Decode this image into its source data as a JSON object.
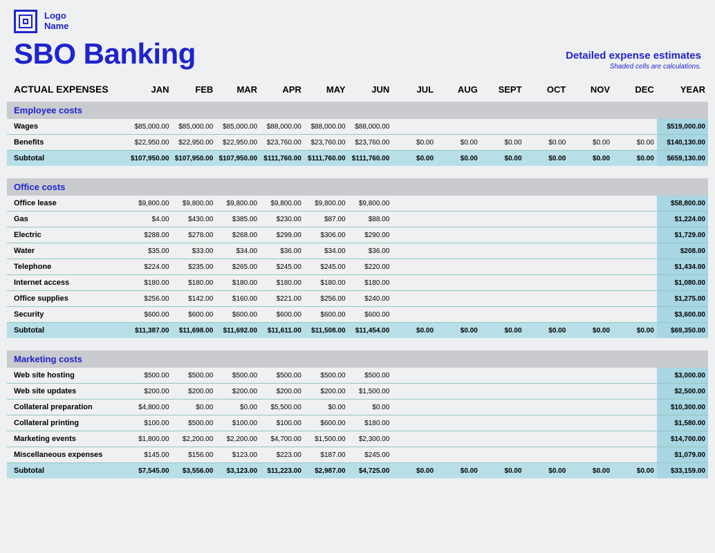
{
  "logo": {
    "line1": "Logo",
    "line2": "Name"
  },
  "title": "SBO Banking",
  "subtitle": "Detailed expense estimates",
  "subnote": "Shaded cells are calculations.",
  "header_label": "ACTUAL EXPENSES",
  "months": [
    "JAN",
    "FEB",
    "MAR",
    "APR",
    "MAY",
    "JUN",
    "JUL",
    "AUG",
    "SEPT",
    "OCT",
    "NOV",
    "DEC"
  ],
  "year_label": "YEAR",
  "colors": {
    "background": "#eff0f1",
    "brand": "#1f24cc",
    "section_header_bg": "#c9cbce",
    "row_border": "#8fc9c0",
    "subtotal_bg": "#b8dfe8",
    "year_col_bg": "#a8d6e2"
  },
  "sections": [
    {
      "title": "Employee costs",
      "rows": [
        {
          "label": "Wages",
          "vals": [
            "$85,000.00",
            "$85,000.00",
            "$85,000.00",
            "$88,000.00",
            "$88,000.00",
            "$88,000.00",
            "",
            "",
            "",
            "",
            "",
            ""
          ],
          "year": "$519,000.00"
        },
        {
          "label": "Benefits",
          "vals": [
            "$22,950.00",
            "$22,950.00",
            "$22,950.00",
            "$23,760.00",
            "$23,760.00",
            "$23,760.00",
            "$0.00",
            "$0.00",
            "$0.00",
            "$0.00",
            "$0.00",
            "$0.00"
          ],
          "year": "$140,130.00"
        }
      ],
      "subtotal": {
        "label": "Subtotal",
        "vals": [
          "$107,950.00",
          "$107,950.00",
          "$107,950.00",
          "$111,760.00",
          "$111,760.00",
          "$111,760.00",
          "$0.00",
          "$0.00",
          "$0.00",
          "$0.00",
          "$0.00",
          "$0.00"
        ],
        "year": "$659,130.00"
      }
    },
    {
      "title": "Office costs",
      "rows": [
        {
          "label": "Office lease",
          "vals": [
            "$9,800.00",
            "$9,800.00",
            "$9,800.00",
            "$9,800.00",
            "$9,800.00",
            "$9,800.00",
            "",
            "",
            "",
            "",
            "",
            ""
          ],
          "year": "$58,800.00"
        },
        {
          "label": "Gas",
          "vals": [
            "$4.00",
            "$430.00",
            "$385.00",
            "$230.00",
            "$87.00",
            "$88.00",
            "",
            "",
            "",
            "",
            "",
            ""
          ],
          "year": "$1,224.00"
        },
        {
          "label": "Electric",
          "vals": [
            "$288.00",
            "$278.00",
            "$268.00",
            "$299.00",
            "$306.00",
            "$290.00",
            "",
            "",
            "",
            "",
            "",
            ""
          ],
          "year": "$1,729.00"
        },
        {
          "label": "Water",
          "vals": [
            "$35.00",
            "$33.00",
            "$34.00",
            "$36.00",
            "$34.00",
            "$36.00",
            "",
            "",
            "",
            "",
            "",
            ""
          ],
          "year": "$208.00"
        },
        {
          "label": "Telephone",
          "vals": [
            "$224.00",
            "$235.00",
            "$265.00",
            "$245.00",
            "$245.00",
            "$220.00",
            "",
            "",
            "",
            "",
            "",
            ""
          ],
          "year": "$1,434.00"
        },
        {
          "label": "Internet access",
          "vals": [
            "$180.00",
            "$180.00",
            "$180.00",
            "$180.00",
            "$180.00",
            "$180.00",
            "",
            "",
            "",
            "",
            "",
            ""
          ],
          "year": "$1,080.00"
        },
        {
          "label": "Office supplies",
          "vals": [
            "$256.00",
            "$142.00",
            "$160.00",
            "$221.00",
            "$256.00",
            "$240.00",
            "",
            "",
            "",
            "",
            "",
            ""
          ],
          "year": "$1,275.00"
        },
        {
          "label": "Security",
          "vals": [
            "$600.00",
            "$600.00",
            "$600.00",
            "$600.00",
            "$600.00",
            "$600.00",
            "",
            "",
            "",
            "",
            "",
            ""
          ],
          "year": "$3,600.00"
        }
      ],
      "subtotal": {
        "label": "Subtotal",
        "vals": [
          "$11,387.00",
          "$11,698.00",
          "$11,692.00",
          "$11,611.00",
          "$11,508.00",
          "$11,454.00",
          "$0.00",
          "$0.00",
          "$0.00",
          "$0.00",
          "$0.00",
          "$0.00"
        ],
        "year": "$69,350.00"
      }
    },
    {
      "title": "Marketing costs",
      "rows": [
        {
          "label": "Web site hosting",
          "vals": [
            "$500.00",
            "$500.00",
            "$500.00",
            "$500.00",
            "$500.00",
            "$500.00",
            "",
            "",
            "",
            "",
            "",
            ""
          ],
          "year": "$3,000.00"
        },
        {
          "label": "Web site updates",
          "vals": [
            "$200.00",
            "$200.00",
            "$200.00",
            "$200.00",
            "$200.00",
            "$1,500.00",
            "",
            "",
            "",
            "",
            "",
            ""
          ],
          "year": "$2,500.00"
        },
        {
          "label": "Collateral preparation",
          "vals": [
            "$4,800.00",
            "$0.00",
            "$0.00",
            "$5,500.00",
            "$0.00",
            "$0.00",
            "",
            "",
            "",
            "",
            "",
            ""
          ],
          "year": "$10,300.00"
        },
        {
          "label": "Collateral printing",
          "vals": [
            "$100.00",
            "$500.00",
            "$100.00",
            "$100.00",
            "$600.00",
            "$180.00",
            "",
            "",
            "",
            "",
            "",
            ""
          ],
          "year": "$1,580.00"
        },
        {
          "label": "Marketing events",
          "vals": [
            "$1,800.00",
            "$2,200.00",
            "$2,200.00",
            "$4,700.00",
            "$1,500.00",
            "$2,300.00",
            "",
            "",
            "",
            "",
            "",
            ""
          ],
          "year": "$14,700.00"
        },
        {
          "label": "Miscellaneous expenses",
          "vals": [
            "$145.00",
            "$156.00",
            "$123.00",
            "$223.00",
            "$187.00",
            "$245.00",
            "",
            "",
            "",
            "",
            "",
            ""
          ],
          "year": "$1,079.00"
        }
      ],
      "subtotal": {
        "label": "Subtotal",
        "vals": [
          "$7,545.00",
          "$3,556.00",
          "$3,123.00",
          "$11,223.00",
          "$2,987.00",
          "$4,725.00",
          "$0.00",
          "$0.00",
          "$0.00",
          "$0.00",
          "$0.00",
          "$0.00"
        ],
        "year": "$33,159.00"
      }
    }
  ]
}
